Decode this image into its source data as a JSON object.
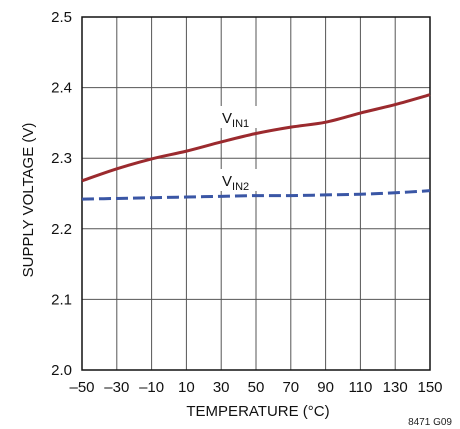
{
  "chart_data": {
    "type": "line",
    "xlabel": "TEMPERATURE (°C)",
    "ylabel": "SUPPLY VOLTAGE (V)",
    "xlim": [
      -50,
      150
    ],
    "ylim": [
      2.0,
      2.5
    ],
    "x_ticks": [
      -50,
      -30,
      -10,
      10,
      30,
      50,
      70,
      90,
      110,
      130,
      150
    ],
    "x_tick_labels": [
      "–50",
      "–30",
      "–10",
      "10",
      "30",
      "50",
      "70",
      "90",
      "110",
      "130",
      "150"
    ],
    "y_ticks": [
      2.0,
      2.1,
      2.2,
      2.3,
      2.4,
      2.5
    ],
    "y_tick_labels": [
      "2.0",
      "2.1",
      "2.2",
      "2.3",
      "2.4",
      "2.5"
    ],
    "grid": true,
    "figure_id": "8471 G09",
    "series": [
      {
        "name": "VIN1",
        "label_main": "V",
        "label_sub": "IN1",
        "color": "#9b2a2e",
        "style": "solid",
        "x": [
          -50,
          -30,
          -10,
          10,
          30,
          50,
          70,
          90,
          110,
          130,
          150
        ],
        "y": [
          2.268,
          2.285,
          2.299,
          2.31,
          2.323,
          2.335,
          2.344,
          2.351,
          2.364,
          2.376,
          2.39
        ]
      },
      {
        "name": "VIN2",
        "label_main": "V",
        "label_sub": "IN2",
        "color": "#3a56a5",
        "style": "dashed",
        "x": [
          -50,
          -30,
          -10,
          10,
          30,
          50,
          70,
          90,
          110,
          130,
          150
        ],
        "y": [
          2.242,
          2.243,
          2.244,
          2.245,
          2.246,
          2.247,
          2.247,
          2.248,
          2.249,
          2.251,
          2.254
        ]
      }
    ]
  }
}
